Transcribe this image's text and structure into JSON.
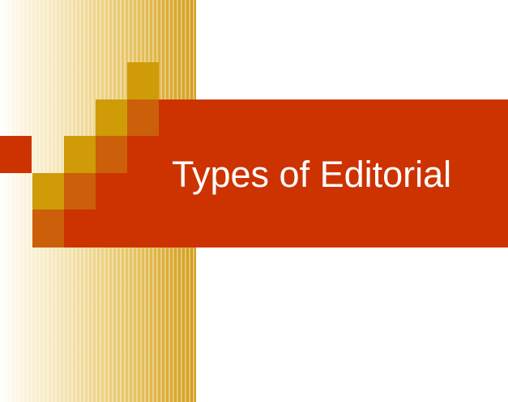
{
  "slide": {
    "title": "Types of Editorial"
  },
  "colors": {
    "title_bar": "#cc3300",
    "block_gold": "#cf9b06",
    "block_orange": "#cc5f09",
    "title_text": "#ffffff",
    "stripe_band": "#d49f20"
  }
}
